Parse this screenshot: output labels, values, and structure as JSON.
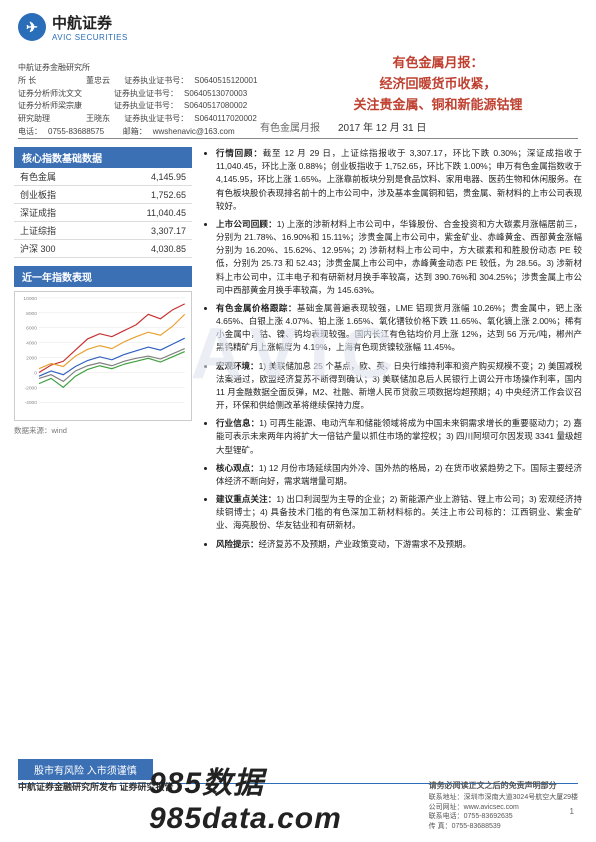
{
  "company": {
    "name_cn": "中航证券",
    "name_en": "AVIC SECURITIES",
    "logo_letter": "✈"
  },
  "title": {
    "line1": "有色金属月报：",
    "line2": "经济回暖货币收紧，",
    "line3": "关注贵金属、铜和新能源钴锂"
  },
  "info": {
    "dept": "中航证券金融研究所",
    "rows": [
      {
        "role": "所    长",
        "name": "董忠云",
        "lic": "证券执业证书号：",
        "num": "S0640515120001"
      },
      {
        "role": "证券分析师沈文文",
        "name": "",
        "lic": "证券执业证书号：",
        "num": "S0640513070003"
      },
      {
        "role": "证券分析师梁宗康",
        "name": "",
        "lic": "证券执业证书号：",
        "num": "S0640517080002"
      },
      {
        "role": "研究助理",
        "name": "王晓东",
        "lic": "证券执业证书号：",
        "num": "S0640117020002"
      }
    ],
    "tel_label": "电话：",
    "tel": "0755-83688575",
    "mail_label": "邮箱：",
    "mail": "wwshenavic@163.com"
  },
  "subheader": {
    "category": "有色金属月报",
    "date": "2017 年 12 月 31 日"
  },
  "left": {
    "box1_title": "核心指数基础数据",
    "indices": [
      {
        "name": "有色金属",
        "val": "4,145.95"
      },
      {
        "name": "创业板指",
        "val": "1,752.65"
      },
      {
        "name": "深证成指",
        "val": "11,040.45"
      },
      {
        "name": "上证综指",
        "val": "3,307.17"
      },
      {
        "name": "沪深 300",
        "val": "4,030.85"
      }
    ],
    "box2_title": "近一年指数表现",
    "data_src": "数据来源：wind"
  },
  "chart": {
    "ylim": [
      -4000,
      10000
    ],
    "grid_color": "#e5e5e5",
    "background": "#ffffff",
    "series": [
      {
        "color": "#c73030",
        "points": [
          0,
          1000,
          1500,
          3000,
          4500,
          5200,
          4800,
          5600,
          6400,
          7800,
          7200,
          8400,
          9200
        ]
      },
      {
        "color": "#e8a030",
        "points": [
          500,
          1200,
          800,
          2200,
          3100,
          3600,
          3200,
          4100,
          4800,
          5400,
          5000,
          6200,
          7800
        ]
      },
      {
        "color": "#3060c0",
        "points": [
          -500,
          200,
          -300,
          800,
          1600,
          2100,
          1700,
          2400,
          2900,
          3400,
          3000,
          3800,
          4600
        ]
      },
      {
        "color": "#40a040",
        "points": [
          -1500,
          -800,
          -2000,
          -500,
          400,
          900,
          500,
          1100,
          1500,
          1900,
          1400,
          2100,
          2800
        ]
      },
      {
        "color": "#808080",
        "points": [
          -800,
          -300,
          -1200,
          200,
          900,
          1300,
          900,
          1500,
          1900,
          2200,
          1800,
          2500,
          3200
        ]
      }
    ]
  },
  "bullets": [
    {
      "lead": "行情回顾：",
      "text": "截至 12 月 29 日，上证综指报收于 3,307.17，环比下跌 0.30%；深证成指收于 11,040.45，环比上涨 0.88%；创业板指收于 1,752.65，环比下跌 1.00%；申万有色金属指数收于 4,145.95，环比上涨 1.65%。上涨靠前板块分别是食品饮料、家用电器、医药生物和休闲服务。在有色板块股价表现排名前十的上市公司中，涉及基本金属铜和铝，贵金属、新材料的上市公司表现较好。"
    },
    {
      "lead": "上市公司回顾：",
      "text": "1) 上涨的涉新材料上市公司中，华锋股份、合金投资和方大碳素月涨幅居前三，分别为 21.78%、16.90%和 15.11%；涉贵金属上市公司中，紫金矿业、赤峰黄金、西部黄金涨幅分别为 16.20%、15.62%、12.95%；2) 涉新材料上市公司中，方大碳素和和胜股份动态 PE 较低，分别为 25.73 和 52.43；涉贵金属上市公司中，赤峰黄金动态 PE 较低，为 28.56。3) 涉新材料上市公司中，江丰电子和有研新材月换手率较高，达到 390.76%和 304.25%；涉贵金属上市公司中西部黄金月换手率较高，为 145.63%。"
    },
    {
      "lead": "有色金属价格跟踪：",
      "text": "基础金属普遍表现较强，LME 铝现货月涨幅 10.26%；贵金属中，钯上涨 4.65%、白银上涨 4.07%、铂上涨 1.65%、氧化镨钕价格下跌 11.65%、氧化镝上涨 2.00%；稀有小金属中，钴、镍、钨均表现较强。国内长江有色钴均价月上涨 12%，达到 56 万元/吨，郴州产黑钨精矿月上涨幅度为 4.19%，上海有色现货镍较涨幅 11.45%。"
    },
    {
      "lead": "宏观环境：",
      "text": "1) 美联储加息 25 个基点，欧、英、日央行维持利率和资产购买规模不变；2) 美国减税法案通过，欧盟经济复苏不断得到确认；3) 美联储加息后人民银行上调公开市场操作利率，国内 11 月金融数据全面反弹，M2、社融、新增人民币贷款三项数据均超预期；4) 中央经济工作会议召开，环保和供给侧改革将继续保持力度。"
    },
    {
      "lead": "行业信息：",
      "text": "1) 可再生能源、电动汽车和储能领域将成为中国未来铜需求增长的重要驱动力；2) 嘉能可表示未来两年内将扩大一倍钴产量以抓住市场的掌控权；3) 四川阿坝可尔因发现 3341 量级超大型锂矿。"
    },
    {
      "lead": "核心观点：",
      "text": "1) 12 月份市场延续国内外冷、国外热的格局，2) 在货币收紧趋势之下。国际主要经济体经济不断向好，需求端增量可期。"
    },
    {
      "lead": "建议重点关注：",
      "text": "1) 出口利润型为主导的企业；2) 新能源产业上游钴、锂上市公司；3) 宏观经济持续铜博士；4) 具备技术门槛的有色深加工新材料标的。关注上市公司标的：江西铜业、紫金矿业、海亮股份、华友钴业和有研新材。"
    },
    {
      "lead": "风险提示：",
      "text": "经济复苏不及预期，产业政策变动，下游需求不及预期。"
    }
  ],
  "risk_bar": "股市有风险    入市须谨慎",
  "footer": {
    "left": "中航证券金融研究所发布       证券研究报告",
    "disclaim": "请务必阅读正文之后的免责声明部分",
    "addr_label": "联系地址：",
    "addr": "深圳市深南大道3024号航空大厦29楼",
    "web_label": "公司网址：",
    "web": "www.avicsec.com",
    "tel_label": "联系电话：",
    "tel": "0755-83692635",
    "fax_label": "传        真：",
    "fax": "0755-83688539"
  },
  "big_num": "985数据 985data.com",
  "page_num": "1",
  "watermark": "AVIC"
}
